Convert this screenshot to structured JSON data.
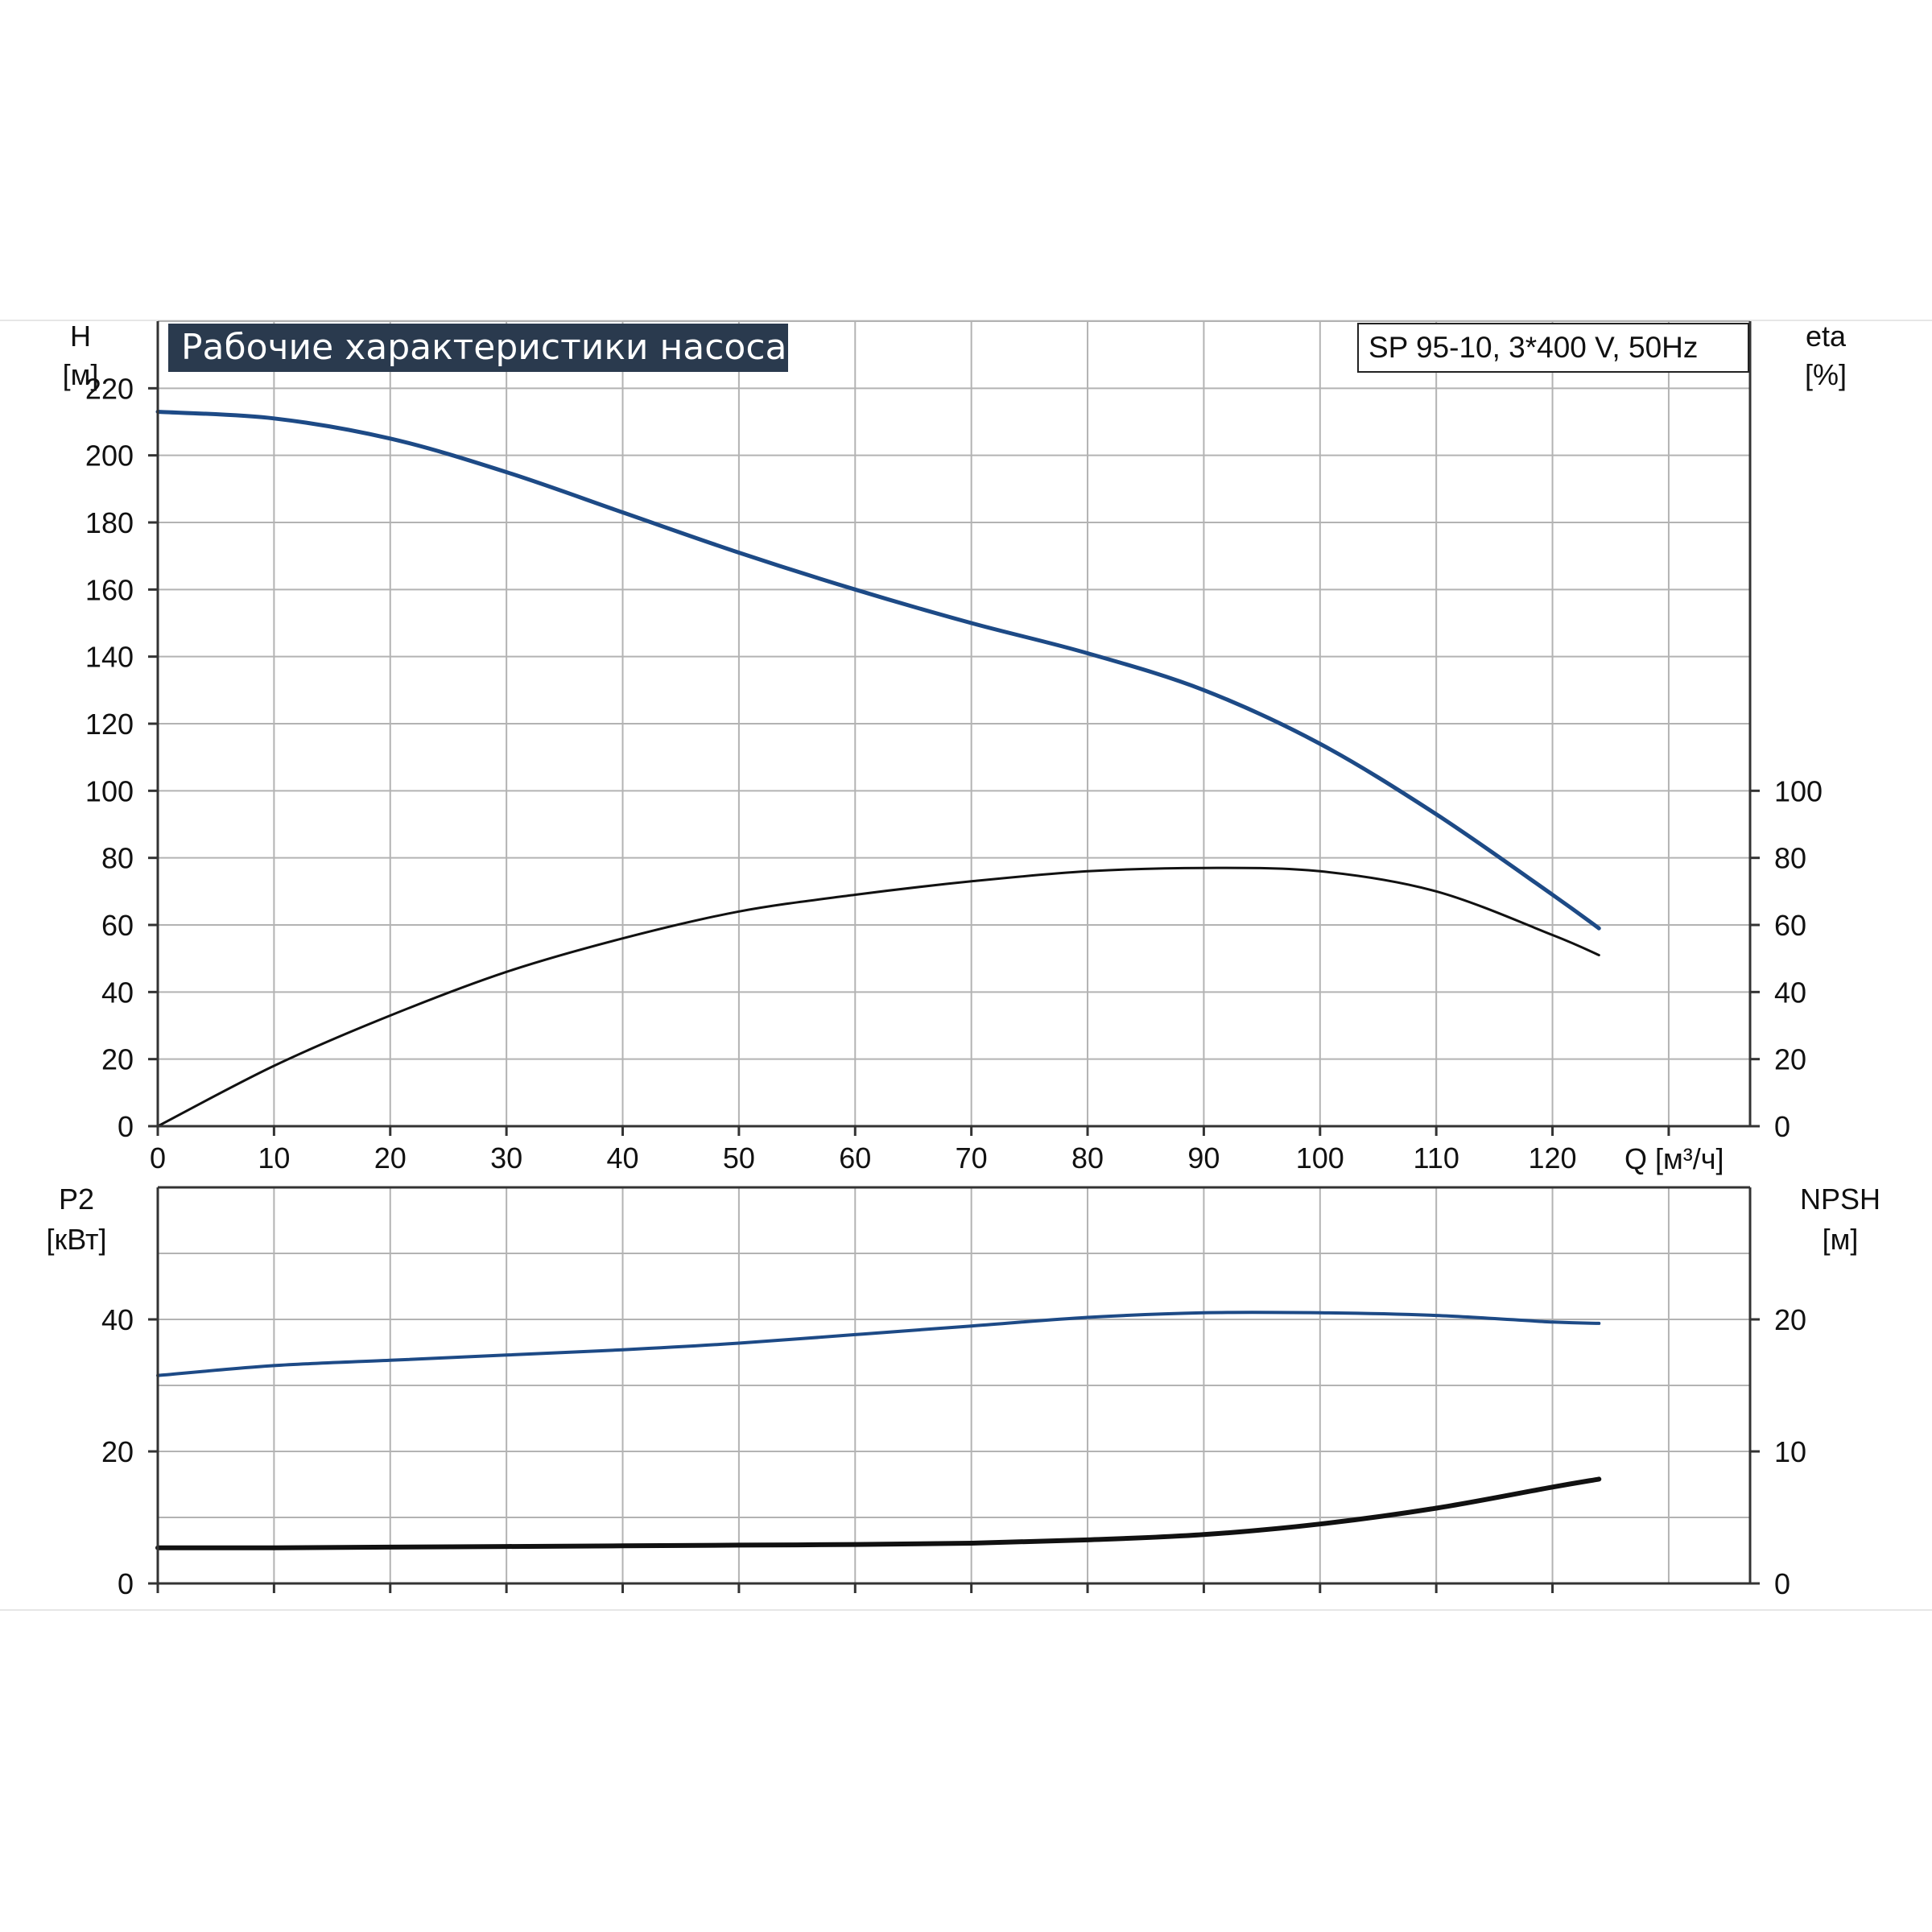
{
  "chart_data": {
    "type": "line",
    "title": "Рабочие характеристики насоса",
    "legend": "SP 95-10, 3*400 V, 50Hz",
    "legend_position": "top-right",
    "grid": true,
    "colors": {
      "blue": "#1d4a86",
      "black": "#111111",
      "grid": "#b3b3b3",
      "title_bg": "#2a3a4e"
    },
    "x": {
      "label": "Q [м³/ч]",
      "range": [
        0,
        137
      ],
      "ticks": [
        0,
        10,
        20,
        30,
        40,
        50,
        60,
        70,
        80,
        90,
        100,
        110,
        120
      ]
    },
    "top_panel": {
      "y_left": {
        "label_line1": "H",
        "label_line2": "[м]",
        "range": [
          0,
          240
        ],
        "ticks": [
          0,
          20,
          40,
          60,
          80,
          100,
          120,
          140,
          160,
          180,
          200,
          220
        ]
      },
      "y_right": {
        "label_line1": "eta",
        "label_line2": "[%]",
        "range": [
          0,
          240
        ],
        "ticks": [
          0,
          20,
          40,
          60,
          80,
          100
        ]
      },
      "series": [
        {
          "id": "head",
          "color": "blue",
          "axis": "left",
          "x": [
            0,
            10,
            20,
            30,
            40,
            50,
            60,
            70,
            80,
            90,
            100,
            110,
            120,
            124
          ],
          "y": [
            213,
            211,
            205,
            195,
            183,
            171,
            160,
            150,
            141,
            130,
            114,
            93,
            69,
            59
          ]
        },
        {
          "id": "efficiency",
          "color": "black",
          "axis": "right",
          "x": [
            0,
            10,
            20,
            30,
            40,
            50,
            60,
            70,
            80,
            90,
            100,
            110,
            120,
            124
          ],
          "y": [
            0,
            18,
            33,
            46,
            56,
            64,
            69,
            73,
            76,
            77,
            76,
            70,
            57,
            51
          ]
        }
      ]
    },
    "bottom_panel": {
      "y_left": {
        "label_line1": "P2",
        "label_line2": "[кВт]",
        "range": [
          0,
          60
        ],
        "ticks": [
          0,
          20,
          40
        ]
      },
      "y_right": {
        "label_line1": "NPSH",
        "label_line2": "[м]",
        "range": [
          0,
          30
        ],
        "ticks": [
          0,
          10,
          20
        ]
      },
      "series": [
        {
          "id": "power",
          "color": "blue",
          "axis": "left",
          "x": [
            0,
            10,
            20,
            30,
            40,
            50,
            60,
            70,
            80,
            90,
            100,
            110,
            120,
            124
          ],
          "y": [
            31.5,
            33.0,
            33.8,
            34.6,
            35.4,
            36.4,
            37.7,
            39.0,
            40.3,
            41.0,
            41.0,
            40.6,
            39.6,
            39.4
          ]
        },
        {
          "id": "npsh",
          "color": "black",
          "axis": "right",
          "x": [
            0,
            10,
            20,
            30,
            40,
            50,
            60,
            70,
            80,
            90,
            100,
            110,
            120,
            124
          ],
          "y": [
            2.7,
            2.7,
            2.75,
            2.8,
            2.85,
            2.9,
            2.95,
            3.05,
            3.3,
            3.7,
            4.5,
            5.7,
            7.3,
            7.9
          ]
        }
      ]
    }
  }
}
